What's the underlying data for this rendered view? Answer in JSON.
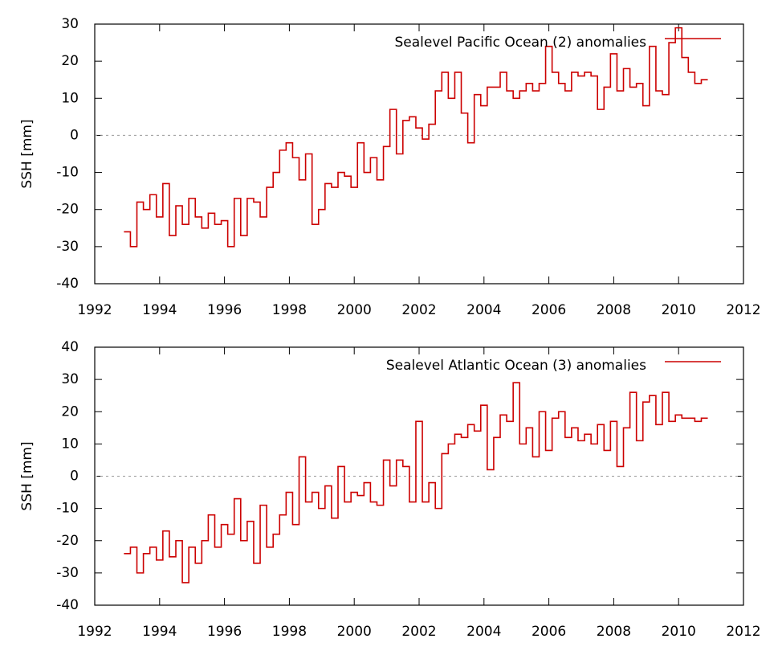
{
  "chart_data": [
    {
      "type": "line",
      "step": true,
      "zero_line": true,
      "ylabel": "SSH [mm]",
      "legend": "upper right",
      "xlim": [
        1992,
        2012
      ],
      "xticks": [
        1992,
        1994,
        1996,
        1998,
        2000,
        2002,
        2004,
        2006,
        2008,
        2010,
        2012
      ],
      "ylim": [
        -40,
        30
      ],
      "yticks": [
        -40,
        -30,
        -20,
        -10,
        0,
        10,
        20,
        30
      ],
      "x": [
        1992.9,
        1993.1,
        1993.3,
        1993.5,
        1993.7,
        1993.9,
        1994.1,
        1994.3,
        1994.5,
        1994.7,
        1994.9,
        1995.1,
        1995.3,
        1995.5,
        1995.7,
        1995.9,
        1996.1,
        1996.3,
        1996.5,
        1996.7,
        1996.9,
        1997.1,
        1997.3,
        1997.5,
        1997.7,
        1997.9,
        1998.1,
        1998.3,
        1998.5,
        1998.7,
        1998.9,
        1999.1,
        1999.3,
        1999.5,
        1999.7,
        1999.9,
        2000.1,
        2000.3,
        2000.5,
        2000.7,
        2000.9,
        2001.1,
        2001.3,
        2001.5,
        2001.7,
        2001.9,
        2002.1,
        2002.3,
        2002.5,
        2002.7,
        2002.9,
        2003.1,
        2003.3,
        2003.5,
        2003.7,
        2003.9,
        2004.1,
        2004.3,
        2004.5,
        2004.7,
        2004.9,
        2005.1,
        2005.3,
        2005.5,
        2005.7,
        2005.9,
        2006.1,
        2006.3,
        2006.5,
        2006.7,
        2006.9,
        2007.1,
        2007.3,
        2007.5,
        2007.7,
        2007.9,
        2008.1,
        2008.3,
        2008.5,
        2008.7,
        2008.9,
        2009.1,
        2009.3,
        2009.5,
        2009.7,
        2009.9,
        2010.1,
        2010.3,
        2010.5,
        2010.7
      ],
      "series": [
        {
          "name": "Sealevel Pacific Ocean (2) anomalies",
          "color": "#cc0000",
          "values": [
            -26,
            -30,
            -18,
            -20,
            -16,
            -22,
            -13,
            -27,
            -19,
            -24,
            -17,
            -22,
            -25,
            -21,
            -24,
            -23,
            -30,
            -17,
            -27,
            -17,
            -18,
            -22,
            -14,
            -10,
            -4,
            -2,
            -6,
            -12,
            -5,
            -24,
            -20,
            -13,
            -14,
            -10,
            -11,
            -14,
            -2,
            -10,
            -6,
            -12,
            -3,
            7,
            -5,
            4,
            5,
            2,
            -1,
            3,
            12,
            17,
            10,
            17,
            6,
            -2,
            11,
            8,
            13,
            13,
            17,
            12,
            10,
            12,
            14,
            12,
            14,
            24,
            17,
            14,
            12,
            17,
            16,
            17,
            16,
            7,
            13,
            22,
            12,
            18,
            13,
            14,
            8,
            24,
            12,
            11,
            25,
            29,
            21,
            17,
            14,
            15
          ]
        }
      ]
    },
    {
      "type": "line",
      "step": true,
      "zero_line": true,
      "ylabel": "SSH [mm]",
      "legend": "upper right",
      "xlim": [
        1992,
        2012
      ],
      "xticks": [
        1992,
        1994,
        1996,
        1998,
        2000,
        2002,
        2004,
        2006,
        2008,
        2010,
        2012
      ],
      "ylim": [
        -40,
        40
      ],
      "yticks": [
        -40,
        -30,
        -20,
        -10,
        0,
        10,
        20,
        30,
        40
      ],
      "x": [
        1992.9,
        1993.1,
        1993.3,
        1993.5,
        1993.7,
        1993.9,
        1994.1,
        1994.3,
        1994.5,
        1994.7,
        1994.9,
        1995.1,
        1995.3,
        1995.5,
        1995.7,
        1995.9,
        1996.1,
        1996.3,
        1996.5,
        1996.7,
        1996.9,
        1997.1,
        1997.3,
        1997.5,
        1997.7,
        1997.9,
        1998.1,
        1998.3,
        1998.5,
        1998.7,
        1998.9,
        1999.1,
        1999.3,
        1999.5,
        1999.7,
        1999.9,
        2000.1,
        2000.3,
        2000.5,
        2000.7,
        2000.9,
        2001.1,
        2001.3,
        2001.5,
        2001.7,
        2001.9,
        2002.1,
        2002.3,
        2002.5,
        2002.7,
        2002.9,
        2003.1,
        2003.3,
        2003.5,
        2003.7,
        2003.9,
        2004.1,
        2004.3,
        2004.5,
        2004.7,
        2004.9,
        2005.1,
        2005.3,
        2005.5,
        2005.7,
        2005.9,
        2006.1,
        2006.3,
        2006.5,
        2006.7,
        2006.9,
        2007.1,
        2007.3,
        2007.5,
        2007.7,
        2007.9,
        2008.1,
        2008.3,
        2008.5,
        2008.7,
        2008.9,
        2009.1,
        2009.3,
        2009.5,
        2009.7,
        2009.9,
        2010.1,
        2010.3,
        2010.5,
        2010.7
      ],
      "series": [
        {
          "name": "Sealevel Atlantic Ocean (3) anomalies",
          "color": "#cc0000",
          "values": [
            -24,
            -22,
            -30,
            -24,
            -22,
            -26,
            -17,
            -25,
            -20,
            -33,
            -22,
            -27,
            -20,
            -12,
            -22,
            -15,
            -18,
            -7,
            -20,
            -14,
            -27,
            -9,
            -22,
            -18,
            -12,
            -5,
            -15,
            6,
            -8,
            -5,
            -10,
            -3,
            -13,
            3,
            -8,
            -5,
            -6,
            -2,
            -8,
            -9,
            5,
            -3,
            5,
            3,
            -8,
            17,
            -8,
            -2,
            -10,
            7,
            10,
            13,
            12,
            16,
            14,
            22,
            2,
            12,
            19,
            17,
            29,
            10,
            15,
            6,
            20,
            8,
            18,
            20,
            12,
            15,
            11,
            13,
            10,
            16,
            8,
            17,
            3,
            15,
            26,
            11,
            23,
            25,
            16,
            26,
            17,
            19,
            18,
            18,
            17,
            18
          ]
        }
      ]
    }
  ]
}
